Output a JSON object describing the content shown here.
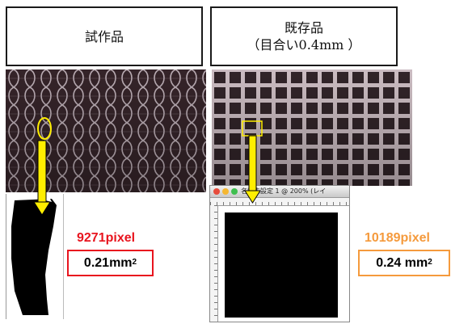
{
  "prototype": {
    "title": "試作品",
    "pixel_count": "9271pixel",
    "area_value": "0.21mm",
    "area_exp": "2"
  },
  "existing": {
    "title": "既存品",
    "subtitle": "（目合い0.4mm ）",
    "pixel_count": "10189pixel",
    "area_value": "0.24 mm",
    "area_exp": "2"
  },
  "editor_window": {
    "title": "名称未設定 1 @ 200% (レイ"
  },
  "colors": {
    "prototype_label": "#e8141e",
    "existing_label": "#f59a3c",
    "arrow": "#ffee00",
    "mesh_background": "#3e2a30"
  },
  "icons": [
    "arrow-down-icon",
    "circle-marker-icon",
    "square-marker-icon",
    "window-close-icon",
    "window-minimize-icon",
    "window-zoom-icon"
  ]
}
